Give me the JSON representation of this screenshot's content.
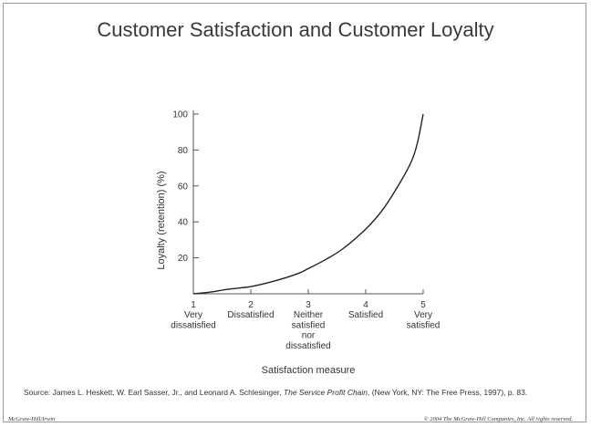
{
  "slide": {
    "title": "Customer Satisfaction and Customer Loyalty",
    "source": {
      "prefix": "Source: James L. Heskett, W. Earl Sasser, Jr., and Leonard A. Schlesinger, ",
      "book": "The Service Profit Chain",
      "suffix": ", (New York, NY: The Free Press, 1997), p. 83."
    },
    "footer_left": "McGraw-Hill/Irwin",
    "footer_right": "© 2004 The McGraw-Hill Companies, Inc. All rights reserved."
  },
  "chart_data": {
    "type": "line",
    "title": "",
    "xlabel": "Satisfaction measure",
    "ylabel": "Loyalty (retention) (%)",
    "xlim": [
      1,
      5
    ],
    "ylim": [
      0,
      100
    ],
    "y_ticks": [
      20,
      40,
      60,
      80,
      100
    ],
    "x_ticks": [
      {
        "value": 1,
        "lines": [
          "1",
          "Very",
          "dissatisfied"
        ]
      },
      {
        "value": 2,
        "lines": [
          "2",
          "Dissatisfied"
        ]
      },
      {
        "value": 3,
        "lines": [
          "3",
          "Neither",
          "satisfied",
          "nor",
          "dissatisfied"
        ]
      },
      {
        "value": 4,
        "lines": [
          "4",
          "Satisfied"
        ]
      },
      {
        "value": 5,
        "lines": [
          "5",
          "Very",
          "satisfied"
        ]
      }
    ],
    "grid": false,
    "series": [
      {
        "x": [
          1,
          1.3,
          1.6,
          2,
          2.4,
          2.8,
          3,
          3.3,
          3.6,
          4,
          4.3,
          4.6,
          4.8,
          4.9,
          5
        ],
        "y": [
          0,
          1,
          2.5,
          4,
          7,
          11,
          14,
          19,
          25,
          36,
          47,
          62,
          74,
          84,
          100
        ]
      }
    ],
    "color": "#222222"
  }
}
